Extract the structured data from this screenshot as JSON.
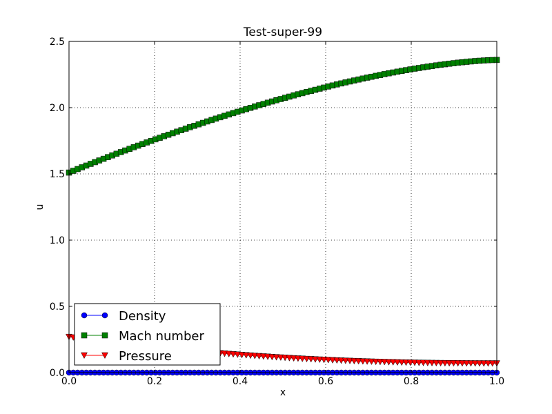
{
  "chart_data": {
    "type": "line",
    "title": "Test-super-99",
    "xlabel": "x",
    "ylabel": "u",
    "xlim": [
      0.0,
      1.0
    ],
    "ylim": [
      0.0,
      2.5
    ],
    "xticks": [
      "0.0",
      "0.2",
      "0.4",
      "0.6",
      "0.8",
      "1.0"
    ],
    "yticks": [
      "0.0",
      "0.5",
      "1.0",
      "1.5",
      "2.0",
      "2.5"
    ],
    "grid": true,
    "legend_position": "lower-left",
    "series": [
      {
        "name": "Density",
        "color": "#0000ff",
        "marker": "circle",
        "x_range": [
          0.0,
          1.0
        ],
        "y_start": 0.0,
        "y_end": 0.0
      },
      {
        "name": "Mach number",
        "color": "#008000",
        "marker": "square",
        "x_range": [
          0.0,
          1.0
        ],
        "y_start": 1.51,
        "y_end": 2.36
      },
      {
        "name": "Pressure",
        "color": "#ff0000",
        "marker": "triangle-down",
        "x_range": [
          0.0,
          1.0
        ],
        "y_start": 0.27,
        "y_end": 0.07
      }
    ]
  }
}
